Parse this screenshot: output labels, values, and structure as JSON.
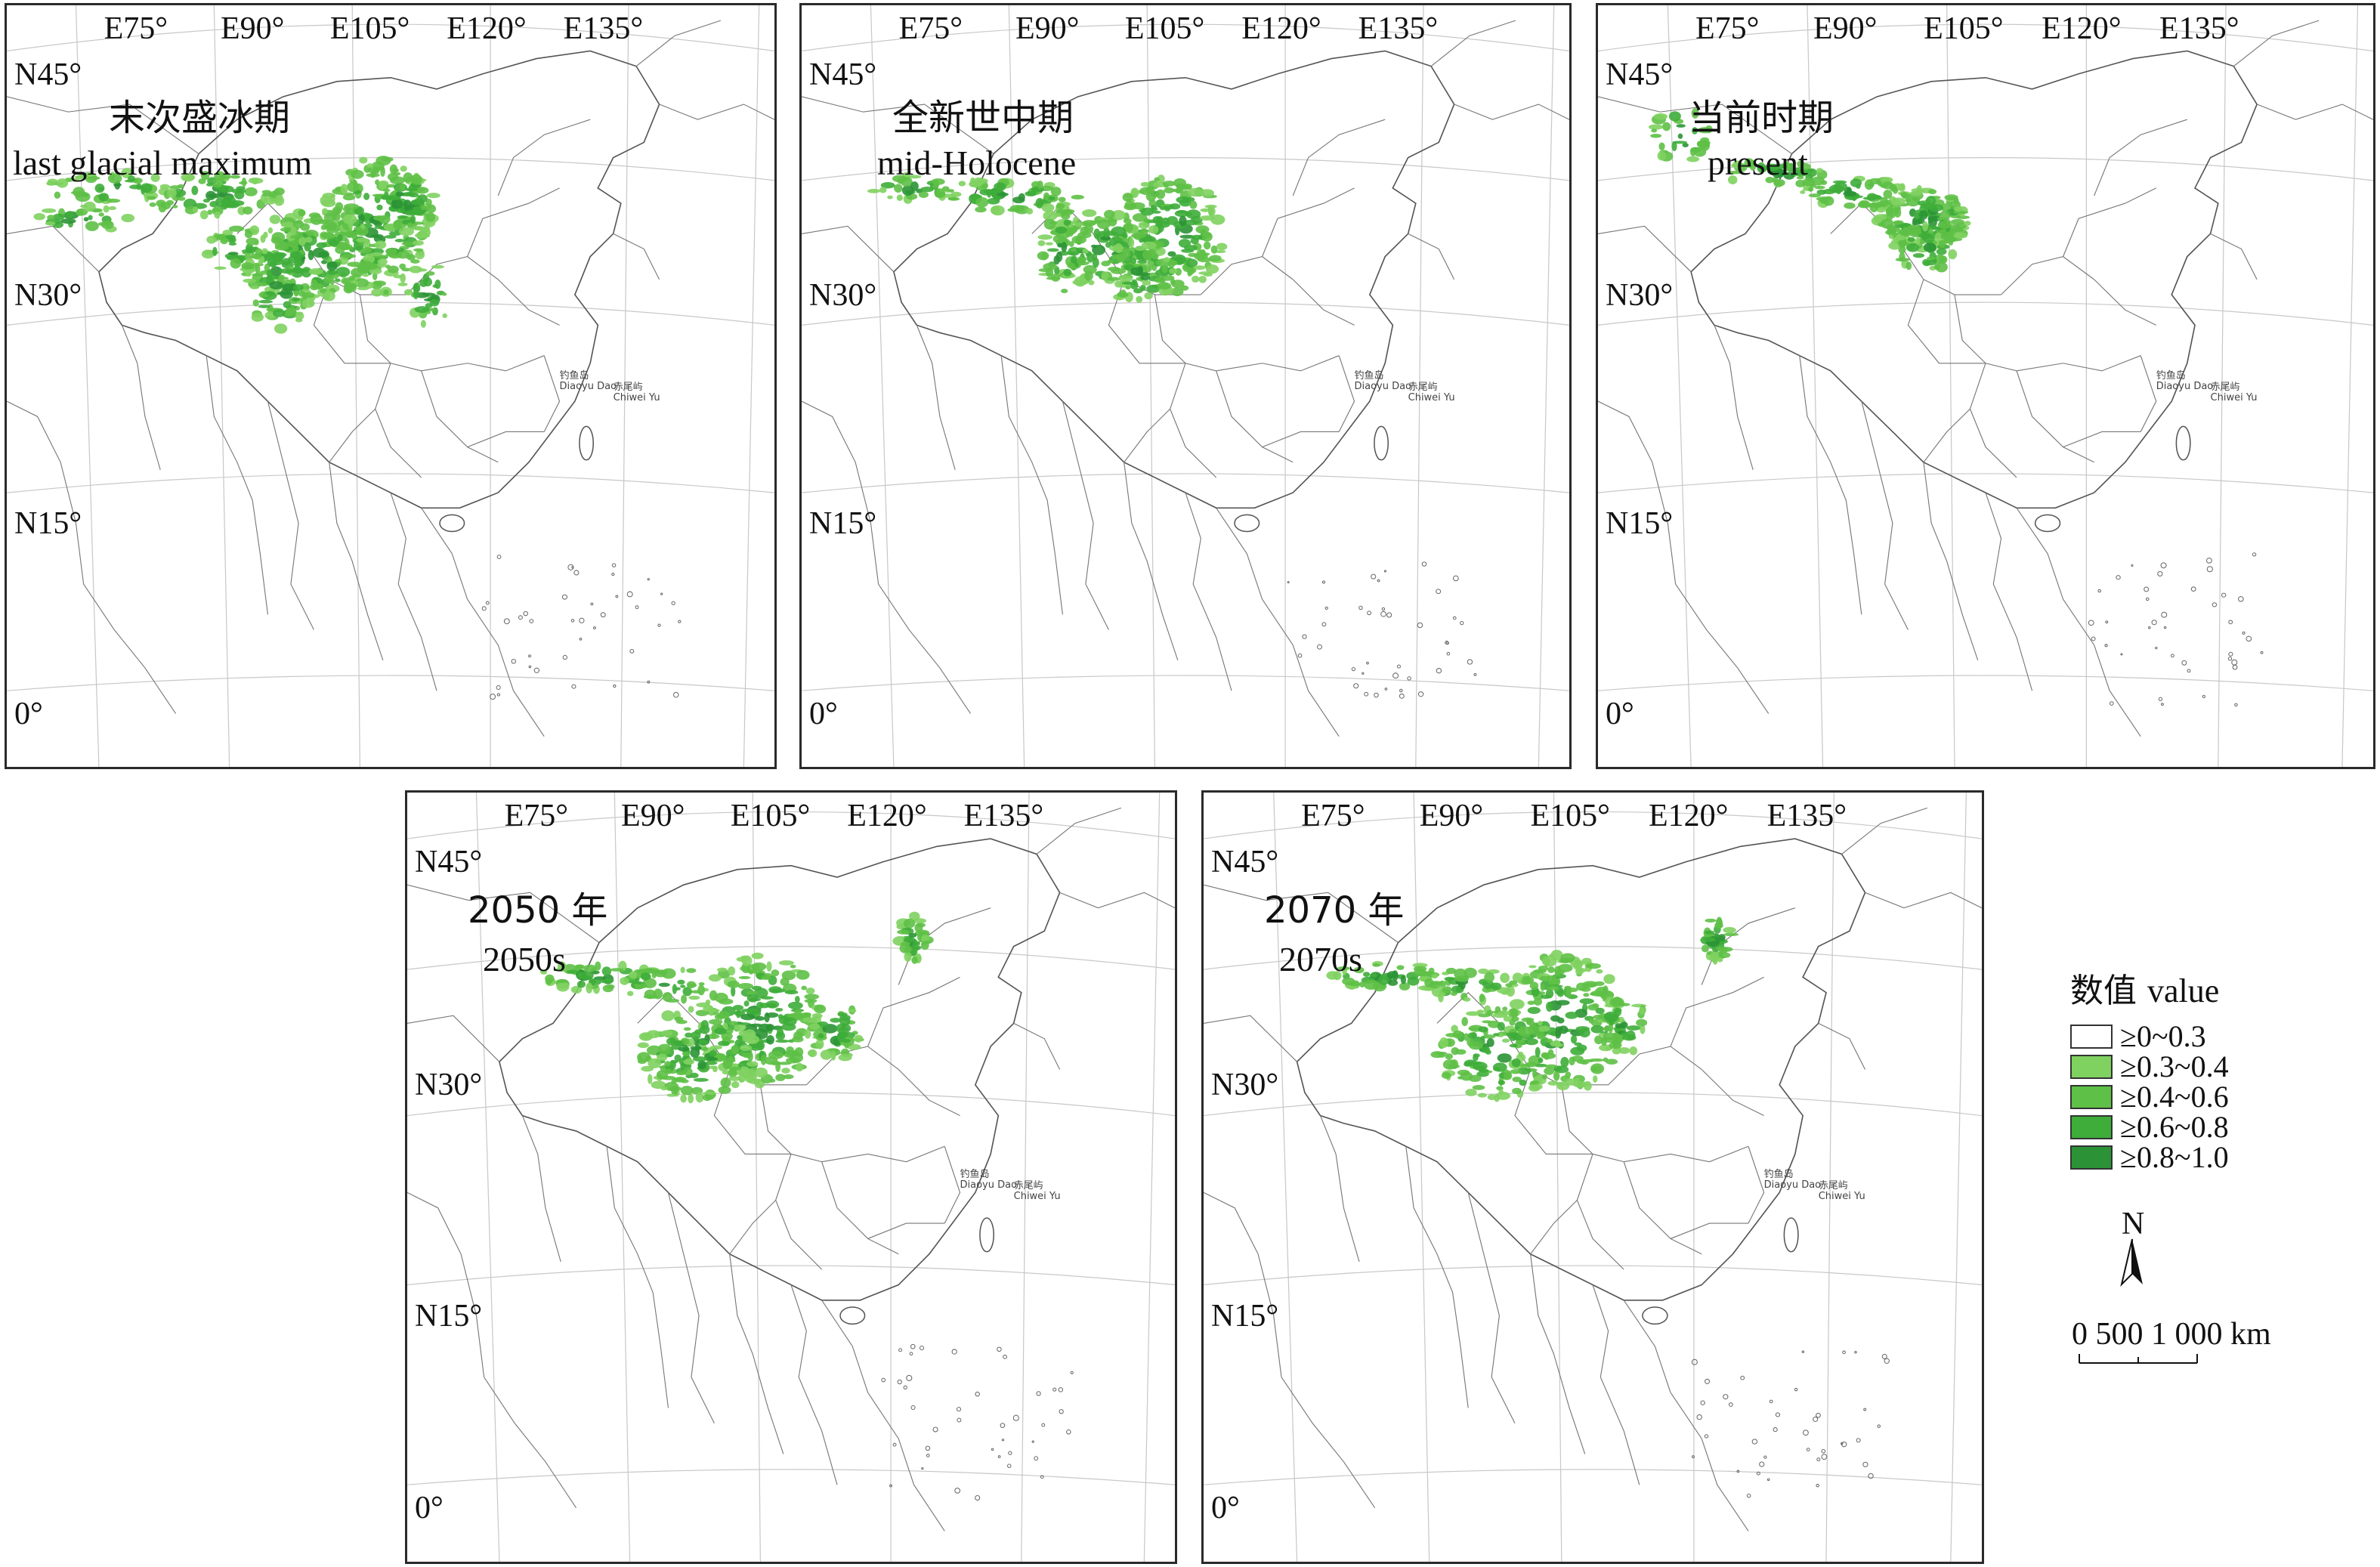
{
  "panels": [
    {
      "id": "lgm",
      "title_cn": "末次盛冰期",
      "title_en": "last glacial maximum"
    },
    {
      "id": "mh",
      "title_cn": "全新世中期",
      "title_en": "mid-Holocene"
    },
    {
      "id": "present",
      "title_cn": "当前时期",
      "title_en": "present"
    },
    {
      "id": "y2050",
      "title_cn": "2050 年",
      "title_en": "2050s"
    },
    {
      "id": "y2070",
      "title_cn": "2070 年",
      "title_en": "2070s"
    }
  ],
  "graticule": {
    "lon_labels": [
      "E75°",
      "E90°",
      "E105°",
      "E120°",
      "E135°"
    ],
    "lat_labels": [
      "N45°",
      "N30°",
      "N15°",
      "0°"
    ]
  },
  "islands": {
    "diaoyu_cn": "钓鱼岛",
    "diaoyu_en": "Diaoyu Dao",
    "chiwei_cn": "赤尾屿",
    "chiwei_en": "Chiwei Yu"
  },
  "legend": {
    "title_cn": "数值",
    "title_en": "value",
    "items": [
      {
        "label": "≥0~0.3",
        "color": "#ffffff"
      },
      {
        "label": "≥0.3~0.4",
        "color": "#7fd160"
      },
      {
        "label": "≥0.4~0.6",
        "color": "#5ec046"
      },
      {
        "label": "≥0.6~0.8",
        "color": "#3ead3a"
      },
      {
        "label": "≥0.8~1.0",
        "color": "#2b9335"
      }
    ]
  },
  "north_arrow": {
    "letter": "N"
  },
  "scale_bar": {
    "label": "0 500 1 000 km"
  }
}
